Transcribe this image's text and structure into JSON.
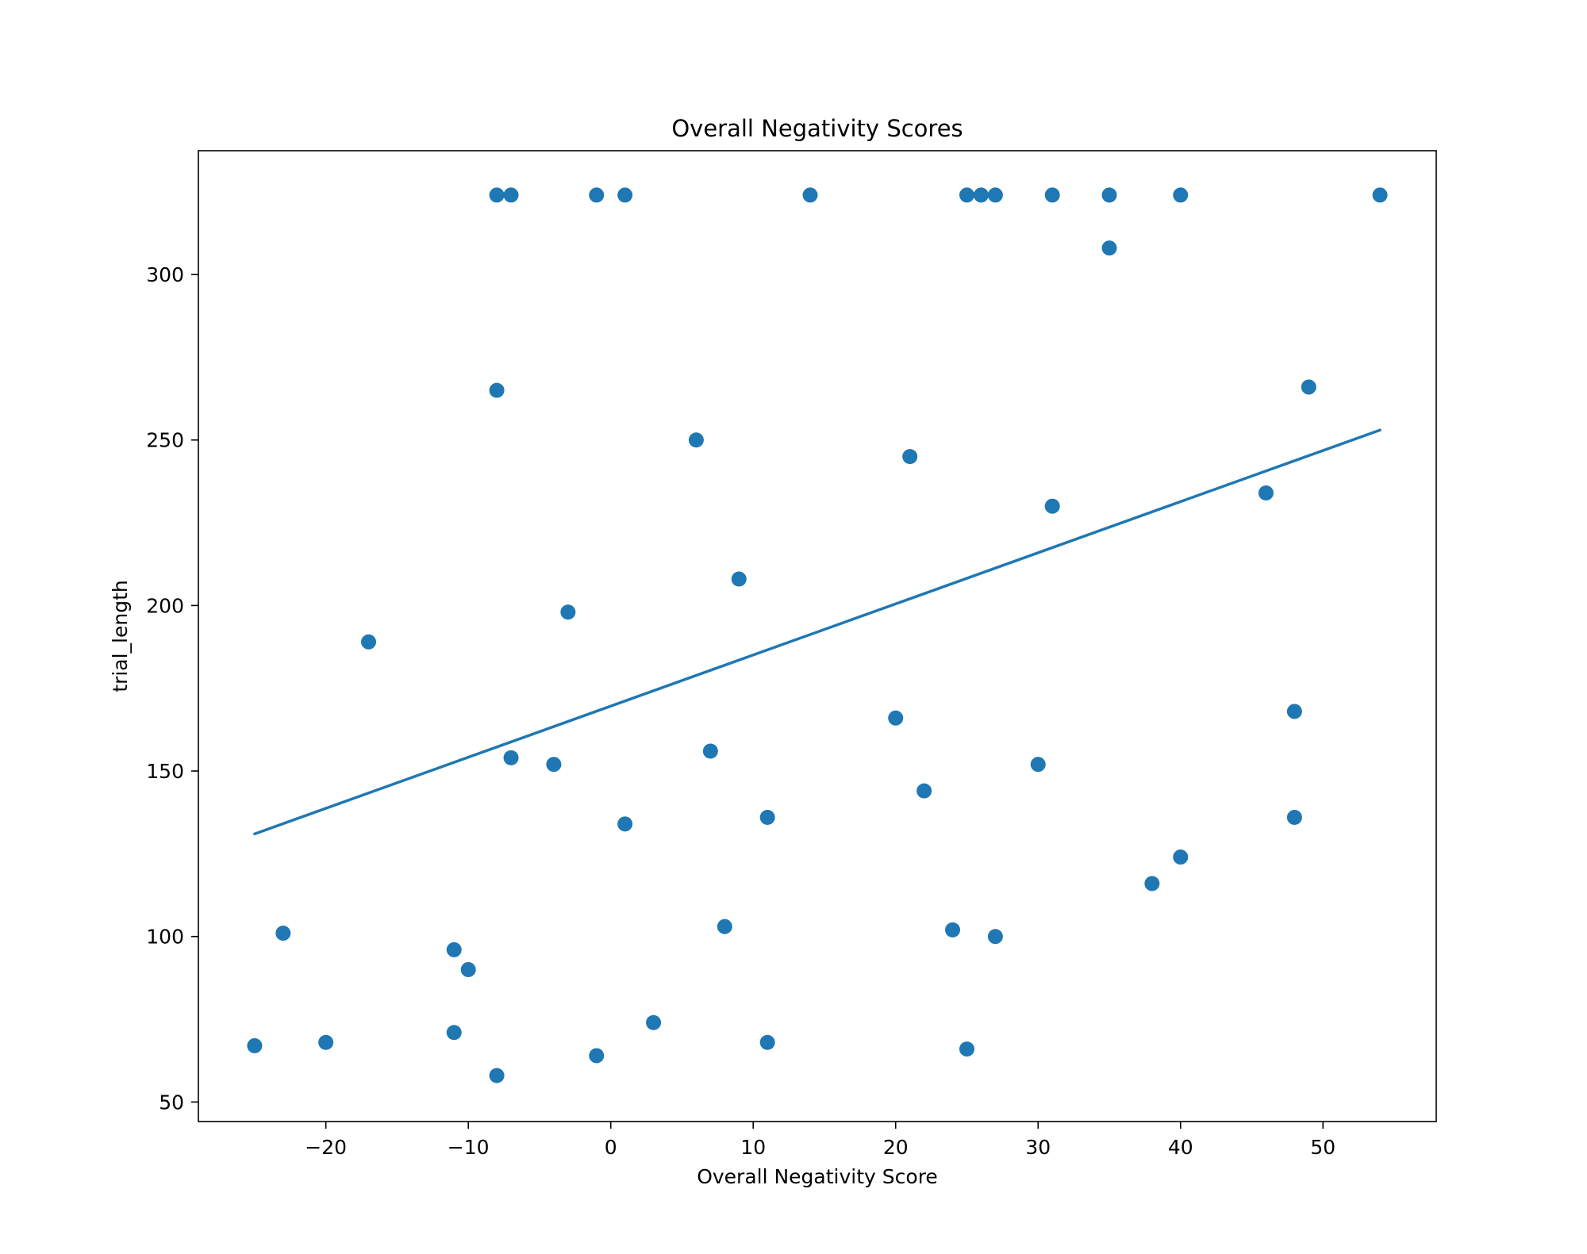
{
  "chart_data": {
    "type": "scatter",
    "title": "Overall Negativity Scores",
    "xlabel": "Overall Negativity Score",
    "ylabel": "trial_length",
    "xlim": [
      -28.95,
      57.95
    ],
    "ylim": [
      44.1,
      337.4
    ],
    "xticks": [
      -20,
      -10,
      0,
      10,
      20,
      30,
      40,
      50
    ],
    "xtick_labels": [
      "−20",
      "−10",
      "0",
      "10",
      "20",
      "30",
      "40",
      "50"
    ],
    "yticks": [
      50,
      100,
      150,
      200,
      250,
      300
    ],
    "ytick_labels": [
      "50",
      "100",
      "150",
      "200",
      "250",
      "300"
    ],
    "grid": false,
    "series": [
      {
        "kind": "points",
        "color": "#1f77b4",
        "points": [
          {
            "x": -8,
            "y": 324
          },
          {
            "x": -7,
            "y": 324
          },
          {
            "x": -1,
            "y": 324
          },
          {
            "x": 1,
            "y": 324
          },
          {
            "x": 14,
            "y": 324
          },
          {
            "x": 25,
            "y": 324
          },
          {
            "x": 26,
            "y": 324
          },
          {
            "x": 27,
            "y": 324
          },
          {
            "x": 31,
            "y": 324
          },
          {
            "x": 35,
            "y": 324
          },
          {
            "x": 40,
            "y": 324
          },
          {
            "x": 54,
            "y": 324
          },
          {
            "x": 35,
            "y": 308
          },
          {
            "x": -8,
            "y": 265
          },
          {
            "x": 49,
            "y": 266
          },
          {
            "x": 6,
            "y": 250
          },
          {
            "x": 21,
            "y": 245
          },
          {
            "x": 31,
            "y": 230
          },
          {
            "x": 46,
            "y": 234
          },
          {
            "x": 9,
            "y": 208
          },
          {
            "x": -3,
            "y": 198
          },
          {
            "x": -17,
            "y": 189
          },
          {
            "x": 48,
            "y": 168
          },
          {
            "x": 20,
            "y": 166
          },
          {
            "x": 7,
            "y": 156
          },
          {
            "x": -7,
            "y": 154
          },
          {
            "x": -4,
            "y": 152
          },
          {
            "x": 30,
            "y": 152
          },
          {
            "x": 22,
            "y": 144
          },
          {
            "x": 11,
            "y": 136
          },
          {
            "x": 48,
            "y": 136
          },
          {
            "x": 1,
            "y": 134
          },
          {
            "x": 40,
            "y": 124
          },
          {
            "x": 38,
            "y": 116
          },
          {
            "x": 8,
            "y": 103
          },
          {
            "x": 24,
            "y": 102
          },
          {
            "x": -23,
            "y": 101
          },
          {
            "x": 27,
            "y": 100
          },
          {
            "x": -11,
            "y": 96
          },
          {
            "x": -10,
            "y": 90
          },
          {
            "x": 3,
            "y": 74
          },
          {
            "x": -11,
            "y": 71
          },
          {
            "x": -20,
            "y": 68
          },
          {
            "x": 11,
            "y": 68
          },
          {
            "x": -25,
            "y": 67
          },
          {
            "x": 25,
            "y": 66
          },
          {
            "x": -1,
            "y": 64
          },
          {
            "x": -8,
            "y": 58
          }
        ]
      },
      {
        "kind": "trend-line",
        "color": "#1f77b4",
        "points": [
          {
            "x": -25,
            "y": 131
          },
          {
            "x": 54,
            "y": 253
          }
        ]
      }
    ]
  }
}
